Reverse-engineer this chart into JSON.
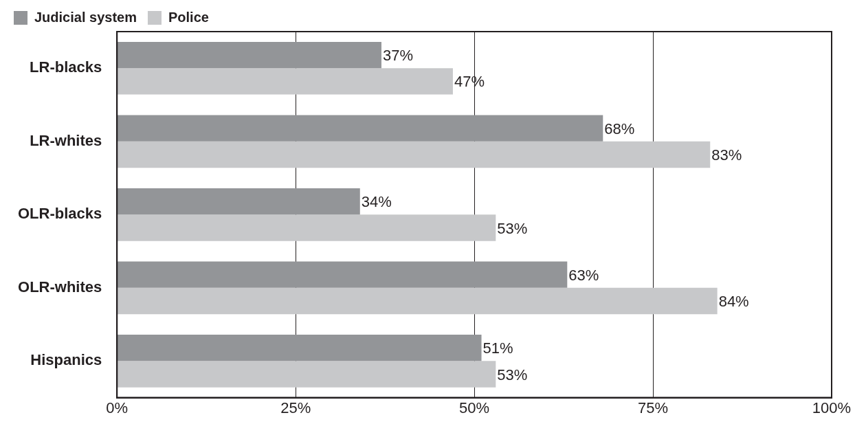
{
  "chart_data": {
    "type": "bar",
    "orientation": "horizontal",
    "categories": [
      "LR-blacks",
      "LR-whites",
      "OLR-blacks",
      "OLR-whites",
      "Hispanics"
    ],
    "series": [
      {
        "name": "Judicial system",
        "color": "#939598",
        "values": [
          37,
          68,
          34,
          63,
          51
        ],
        "value_labels": [
          "37%",
          "68%",
          "34%",
          "63%",
          "51%"
        ]
      },
      {
        "name": "Police",
        "color": "#c7c8ca",
        "values": [
          47,
          83,
          53,
          84,
          53
        ],
        "value_labels": [
          "47%",
          "83%",
          "53%",
          "84%",
          "53%"
        ]
      }
    ],
    "xlim": [
      0,
      100
    ],
    "xticks": [
      {
        "value": 0,
        "label": "0%"
      },
      {
        "value": 25,
        "label": "25%"
      },
      {
        "value": 50,
        "label": "50%"
      },
      {
        "value": 75,
        "label": "75%"
      },
      {
        "value": 100,
        "label": "100%"
      }
    ],
    "grid": "x",
    "legend": "top left"
  }
}
